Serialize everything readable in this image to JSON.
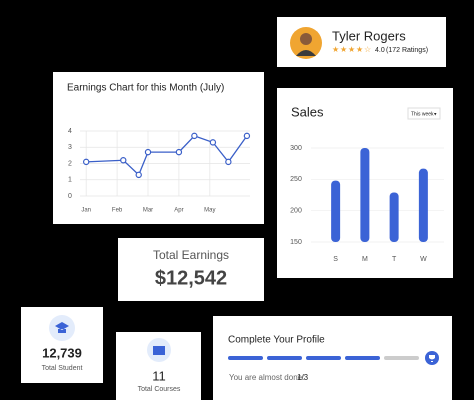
{
  "profile": {
    "name": "Tyler  Rogers",
    "rating": "4.0",
    "ratings_count": "(172 Ratings)"
  },
  "chart_data": [
    {
      "type": "line",
      "title": "Earnings Chart for this Month (July)",
      "x": [
        0,
        1.2,
        1.7,
        2,
        3,
        3.5,
        4.1,
        4.6,
        5.2
      ],
      "values": [
        2.1,
        2.2,
        1.3,
        2.7,
        2.7,
        3.7,
        3.3,
        2.1,
        3.7
      ],
      "xlim": [
        -0.2,
        5.3
      ],
      "xticks": [
        {
          "value": 0,
          "label": "Jan"
        },
        {
          "value": 1,
          "label": "Feb"
        },
        {
          "value": 2,
          "label": "Mar"
        },
        {
          "value": 3,
          "label": "Apr"
        },
        {
          "value": 4,
          "label": "May"
        }
      ],
      "ylim": [
        0,
        4
      ],
      "yticks": [
        0,
        1,
        2,
        3,
        4
      ],
      "color": "#3a5fc8",
      "grid": true
    },
    {
      "type": "bar",
      "title": "Sales",
      "period": "This week",
      "categories": [
        "S",
        "M",
        "T",
        "W"
      ],
      "values": [
        248,
        300,
        229,
        267
      ],
      "ylim": [
        150,
        300
      ],
      "yticks": [
        150,
        200,
        250,
        300
      ],
      "color": "#3b63d6",
      "grid": true
    }
  ],
  "earnings": {
    "label": "Total Earnings",
    "value": "$12,542"
  },
  "students": {
    "value": "12,739",
    "label": "Total Student"
  },
  "courses": {
    "value": "11",
    "label": "Total Courses"
  },
  "profile_task": {
    "title": "Complete Your Profile",
    "note": "You are almost done:",
    "progress": "1/3"
  }
}
